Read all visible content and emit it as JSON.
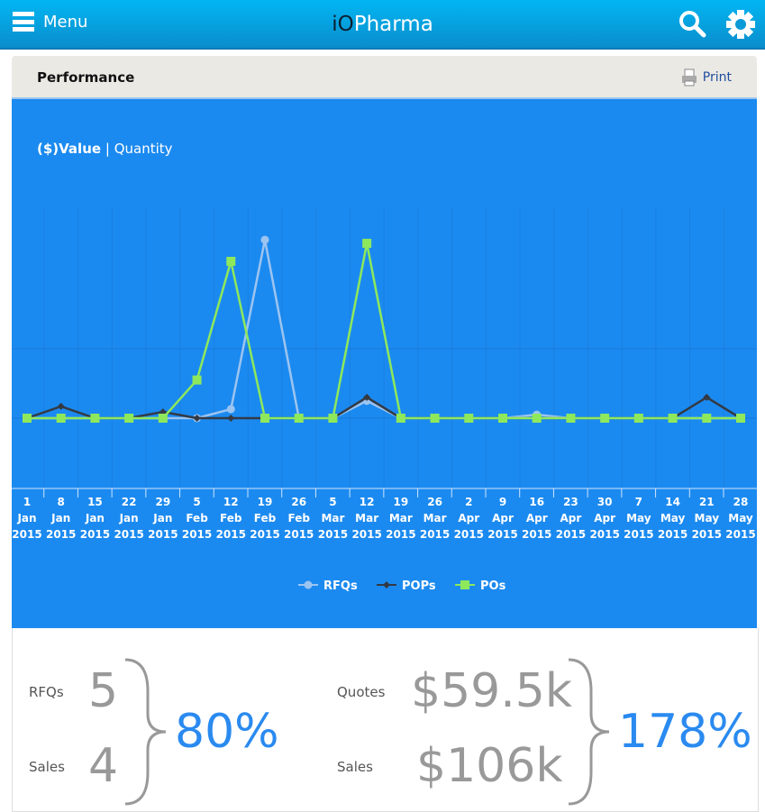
{
  "header": {
    "menu_label": "Menu",
    "logo_prefix": "iO",
    "logo_suffix": "Pharma"
  },
  "panel": {
    "title": "Performance",
    "print_label": "Print",
    "toggle_value": "($)Value",
    "toggle_sep": "|",
    "toggle_quantity": "Quantity"
  },
  "colors": {
    "rfqs": "#9cc4f0",
    "pops": "#333a44",
    "pos": "#8ee85c"
  },
  "chart_data": {
    "type": "line",
    "title": "",
    "xlabel": "",
    "ylabel": "",
    "ylim": [
      0,
      3.0
    ],
    "x": [
      [
        "1",
        "Jan",
        "2015"
      ],
      [
        "8",
        "Jan",
        "2015"
      ],
      [
        "15",
        "Jan",
        "2015"
      ],
      [
        "22",
        "Jan",
        "2015"
      ],
      [
        "29",
        "Jan",
        "2015"
      ],
      [
        "5",
        "Feb",
        "2015"
      ],
      [
        "12",
        "Feb",
        "2015"
      ],
      [
        "19",
        "Feb",
        "2015"
      ],
      [
        "26",
        "Feb",
        "2015"
      ],
      [
        "5",
        "Mar",
        "2015"
      ],
      [
        "12",
        "Mar",
        "2015"
      ],
      [
        "19",
        "Mar",
        "2015"
      ],
      [
        "26",
        "Mar",
        "2015"
      ],
      [
        "2",
        "Apr",
        "2015"
      ],
      [
        "9",
        "Apr",
        "2015"
      ],
      [
        "16",
        "Apr",
        "2015"
      ],
      [
        "23",
        "Apr",
        "2015"
      ],
      [
        "30",
        "Apr",
        "2015"
      ],
      [
        "7",
        "May",
        "2015"
      ],
      [
        "14",
        "May",
        "2015"
      ],
      [
        "21",
        "May",
        "2015"
      ],
      [
        "28",
        "May",
        "2015"
      ]
    ],
    "series": [
      {
        "name": "RFQs",
        "values": [
          0,
          0,
          0,
          0,
          0,
          0,
          0.13,
          2.57,
          0,
          0,
          0.25,
          0,
          0,
          0,
          0,
          0.05,
          0,
          0,
          0,
          0,
          0,
          0
        ]
      },
      {
        "name": "POPs",
        "values": [
          0,
          0.17,
          0,
          0,
          0.09,
          0,
          0,
          0,
          0,
          0,
          0.3,
          0,
          0,
          0,
          0,
          0,
          0,
          0,
          0,
          0,
          0.3,
          0
        ]
      },
      {
        "name": "POs",
        "values": [
          0,
          0,
          0,
          0,
          0,
          0.55,
          2.26,
          0,
          0,
          0,
          2.52,
          0,
          0,
          0,
          0,
          0,
          0,
          0,
          0,
          0,
          0,
          0
        ]
      }
    ],
    "legend": "bottom-center"
  },
  "stats": {
    "rfqs_label": "RFQs",
    "rfqs_value": "5",
    "sales_label": "Sales",
    "sales_value": "4",
    "conversion": "80%",
    "quotes_label": "Quotes",
    "quotes_value": "$59.5k",
    "sales2_label": "Sales",
    "sales2_value": "$106k",
    "value_ratio": "178%"
  }
}
